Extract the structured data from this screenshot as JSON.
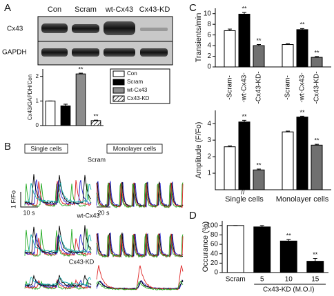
{
  "panel_labels": [
    "A",
    "B",
    "C",
    "D"
  ],
  "blot": {
    "lanes": [
      "Con",
      "Scram",
      "wt-Cx43",
      "Cx43-KD"
    ],
    "rows": [
      "Cx43",
      "GAPDH"
    ]
  },
  "traces": {
    "columns": [
      "Single cells",
      "Monolayer cells"
    ],
    "conditions": [
      "Scram",
      "wt-Cx43",
      "Cx43-KD"
    ],
    "scale_y": "1 F/Fo",
    "scale_x_single": "10 s",
    "scale_x_mono": "20 s"
  },
  "chart_data": [
    {
      "type": "bar",
      "ylabel": "Cx43/GAPDH/Con",
      "categories": [
        "Con",
        "Scram",
        "wt-Cx43",
        "Cx43-KD"
      ],
      "values": [
        1,
        0.8,
        2.1,
        0.2
      ],
      "errors": [
        0,
        0.07,
        0.03,
        0.02
      ],
      "colors": [
        "#ffffff",
        "#000000",
        "#8c8c8c",
        "#ffffff"
      ],
      "hatched": [
        false,
        false,
        false,
        true
      ],
      "ylim": [
        0,
        2.3
      ],
      "yticks": [
        0,
        1,
        2
      ],
      "legend": "right",
      "annotations": [
        {
          "label": "**",
          "index": 2
        },
        {
          "label": "**",
          "index": 3
        }
      ]
    },
    {
      "type": "grouped-bar",
      "ylabel": "Transients/min",
      "series": [
        {
          "name": "-Scram-",
          "color": "#ffffff",
          "values": [
            6.8,
            4.2
          ],
          "errors": [
            0.3,
            0.15
          ]
        },
        {
          "name": "-wt-Cx43-",
          "color": "#000000",
          "values": [
            9.9,
            7.0
          ],
          "errors": [
            0.3,
            0.2
          ]
        },
        {
          "name": "-Cx43-KD-",
          "color": "#707070",
          "values": [
            4.0,
            1.8
          ],
          "errors": [
            0.2,
            0.15
          ]
        }
      ],
      "ylim": [
        0,
        11
      ],
      "yticks": [
        0,
        2,
        4,
        6,
        8,
        10
      ],
      "annotations": [
        {
          "label": "**",
          "series": 1,
          "index": 0
        },
        {
          "label": "**",
          "series": 2,
          "index": 0
        },
        {
          "label": "**",
          "series": 1,
          "index": 1
        },
        {
          "label": "**",
          "series": 2,
          "index": 1
        }
      ]
    },
    {
      "type": "grouped-bar",
      "ylabel": "Amplitude (F/Fo)",
      "categories": [
        "Single cells",
        "Monolayer cells"
      ],
      "series": [
        {
          "color": "#ffffff",
          "values": [
            2.6,
            3.5
          ],
          "errors": [
            0.05,
            0.05
          ]
        },
        {
          "color": "#000000",
          "values": [
            4.1,
            4.4
          ],
          "errors": [
            0.1,
            0.05
          ]
        },
        {
          "color": "#707070",
          "values": [
            1.2,
            2.7
          ],
          "errors": [
            0.05,
            0.05
          ]
        }
      ],
      "ylim": [
        0,
        4.8
      ],
      "yticks": [
        1,
        2,
        3,
        4
      ],
      "annotations": [
        {
          "label": "**",
          "series": 1,
          "index": 0
        },
        {
          "label": "**",
          "series": 2,
          "index": 0
        },
        {
          "label": "**",
          "series": 1,
          "index": 1
        },
        {
          "label": "**",
          "series": 2,
          "index": 1
        }
      ]
    },
    {
      "type": "bar",
      "ylabel": "Occurance (%)",
      "categories": [
        "Scram",
        "5",
        "10",
        "15"
      ],
      "values": [
        100,
        97,
        67,
        24
      ],
      "errors": [
        0,
        3,
        3,
        6
      ],
      "colors": [
        "#ffffff",
        "#000000",
        "#000000",
        "#000000"
      ],
      "hatched": [
        false,
        false,
        false,
        false
      ],
      "ylim": [
        0,
        110
      ],
      "yticks": [
        0,
        20,
        40,
        60,
        80,
        100
      ],
      "xlabel": "Cx43-KD (M.O.I)",
      "annotations": [
        {
          "label": "**",
          "index": 2
        },
        {
          "label": "**",
          "index": 3
        }
      ]
    }
  ]
}
